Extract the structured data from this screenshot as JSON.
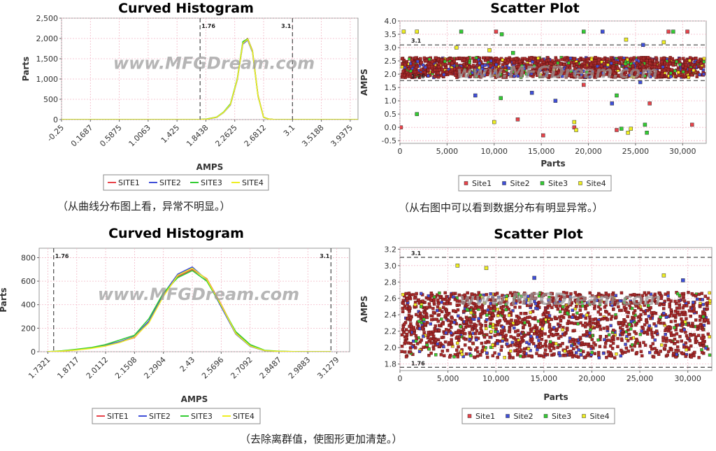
{
  "captions": {
    "top_left": "（从曲线分布图上看，异常不明显。）",
    "top_right": "（从右图中可以看到数据分布有明显异常。）",
    "bottom": "（去除离群值，使图形更加清楚。）"
  },
  "watermark": "www.MFGDream.com",
  "colors": {
    "site1": "#e8434a",
    "site2": "#3f4fd8",
    "site3": "#33cc33",
    "site4": "#eeee22",
    "scatter_body": "#a62a2a"
  },
  "chart_data": [
    {
      "id": "hist1",
      "type": "line",
      "title": "Curved Histogram",
      "xlabel": "AMPS",
      "ylabel": "Parts",
      "xlim": [
        -0.25,
        4.05
      ],
      "ylim": [
        0,
        2500
      ],
      "yticks": [
        0,
        500,
        1000,
        1500,
        2000,
        2500
      ],
      "yticklabels": [
        "0",
        "500",
        "1,000",
        "1,500",
        "2,000",
        "2,500"
      ],
      "xticks": [
        -0.25,
        0.1687,
        0.5875,
        1.0063,
        1.425,
        1.8438,
        2.2625,
        2.6812,
        3.1,
        3.5188,
        3.9375
      ],
      "xticklabels": [
        "-0.25",
        "0.1687",
        "0.5875",
        "1.0063",
        "1.425",
        "1.8438",
        "2.2625",
        "2.6812",
        "3.1",
        "3.5188",
        "3.9375"
      ],
      "limits": [
        {
          "value": 1.76,
          "label": "1.76"
        },
        {
          "value": 3.1,
          "label": "3.1"
        }
      ],
      "x": [
        -0.25,
        0.5,
        1.2,
        1.7,
        1.85,
        2.0,
        2.1,
        2.2,
        2.3,
        2.38,
        2.45,
        2.52,
        2.6,
        2.68,
        2.75,
        2.85,
        3.0,
        3.5,
        4.05
      ],
      "series": [
        {
          "name": "SITE1",
          "values": [
            0,
            0,
            0,
            0,
            10,
            60,
            180,
            380,
            1000,
            1900,
            2000,
            1700,
            600,
            60,
            15,
            0,
            0,
            0,
            0
          ]
        },
        {
          "name": "SITE2",
          "values": [
            0,
            0,
            0,
            0,
            8,
            55,
            170,
            360,
            980,
            1860,
            1960,
            1660,
            580,
            55,
            12,
            0,
            0,
            0,
            0
          ]
        },
        {
          "name": "SITE3",
          "values": [
            0,
            0,
            0,
            0,
            12,
            62,
            185,
            390,
            1010,
            1920,
            1990,
            1690,
            590,
            58,
            14,
            0,
            0,
            0,
            0
          ]
        },
        {
          "name": "SITE4",
          "values": [
            0,
            0,
            0,
            0,
            9,
            58,
            175,
            370,
            990,
            1880,
            1980,
            1680,
            585,
            57,
            13,
            0,
            0,
            0,
            0
          ]
        }
      ],
      "legend": "bottom"
    },
    {
      "id": "scatter1",
      "type": "scatter",
      "title": "Scatter Plot",
      "xlabel": "Parts",
      "ylabel": "AMPS",
      "xlim": [
        0,
        32500
      ],
      "ylim": [
        -0.6,
        4.0
      ],
      "yticks": [
        -0.5,
        0.0,
        0.5,
        1.0,
        1.5,
        2.0,
        2.5,
        3.0,
        3.5,
        4.0
      ],
      "yticklabels": [
        "-0.5",
        "0.0",
        "0.5",
        "1.0",
        "1.5",
        "2.0",
        "2.5",
        "3.0",
        "3.5",
        "4.0"
      ],
      "xticks": [
        0,
        5000,
        10000,
        15000,
        20000,
        25000,
        30000
      ],
      "xticklabels": [
        "0",
        "5,000",
        "10,000",
        "15,000",
        "20,000",
        "25,000",
        "30,000"
      ],
      "limits": [
        {
          "value": 3.1,
          "label": "3.1"
        },
        {
          "value": 1.76,
          "label": "1.76"
        }
      ],
      "band": {
        "low": 1.8,
        "high": 2.7
      },
      "series": [
        {
          "name": "Site1",
          "points": [
            [
              100,
              0.0
            ],
            [
              10200,
              3.6
            ],
            [
              12500,
              0.3
            ],
            [
              15200,
              -0.3
            ],
            [
              18500,
              0.0
            ],
            [
              19500,
              1.6
            ],
            [
              23000,
              -0.1
            ],
            [
              26500,
              0.9
            ],
            [
              28500,
              3.6
            ],
            [
              30500,
              3.6
            ],
            [
              31000,
              0.1
            ]
          ]
        },
        {
          "name": "Site2",
          "points": [
            [
              8000,
              1.2
            ],
            [
              14000,
              1.3
            ],
            [
              16500,
              1.0
            ],
            [
              21500,
              3.6
            ],
            [
              22500,
              0.9
            ],
            [
              25500,
              1.7
            ],
            [
              25800,
              3.1
            ]
          ]
        },
        {
          "name": "Site3",
          "points": [
            [
              1800,
              0.5
            ],
            [
              6500,
              3.6
            ],
            [
              10700,
              1.1
            ],
            [
              10800,
              3.5
            ],
            [
              12000,
              2.8
            ],
            [
              19500,
              3.6
            ],
            [
              23000,
              1.2
            ],
            [
              23500,
              -0.05
            ],
            [
              26000,
              0.1
            ],
            [
              26200,
              -0.2
            ],
            [
              29000,
              3.6
            ]
          ]
        },
        {
          "name": "Site4",
          "points": [
            [
              400,
              3.6
            ],
            [
              1800,
              3.6
            ],
            [
              6000,
              3.0
            ],
            [
              9500,
              2.9
            ],
            [
              10000,
              0.2
            ],
            [
              18500,
              0.2
            ],
            [
              18700,
              -0.1
            ],
            [
              24000,
              3.3
            ],
            [
              24200,
              -0.2
            ],
            [
              24500,
              -0.05
            ],
            [
              28000,
              3.2
            ]
          ]
        }
      ],
      "legend": "bottom"
    },
    {
      "id": "hist2",
      "type": "line",
      "title": "Curved Histogram",
      "xlabel": "AMPS",
      "ylabel": "Parts",
      "xlim": [
        1.69,
        3.19
      ],
      "ylim": [
        0,
        880
      ],
      "yticks": [
        0,
        200,
        400,
        600,
        800
      ],
      "yticklabels": [
        "0",
        "200",
        "400",
        "600",
        "800"
      ],
      "xticks": [
        1.7321,
        1.8717,
        2.0112,
        2.1508,
        2.2904,
        2.43,
        2.5696,
        2.7092,
        2.8487,
        2.9883,
        3.1279
      ],
      "xticklabels": [
        "1.7321",
        "1.8717",
        "2.0112",
        "2.1508",
        "2.2904",
        "2.43",
        "2.5696",
        "2.7092",
        "2.8487",
        "2.9883",
        "3.1279"
      ],
      "limits": [
        {
          "value": 1.76,
          "label": "1.76"
        },
        {
          "value": 3.1,
          "label": "3.1"
        }
      ],
      "x": [
        1.73,
        1.8,
        1.87,
        1.94,
        2.01,
        2.08,
        2.15,
        2.22,
        2.29,
        2.36,
        2.43,
        2.5,
        2.57,
        2.64,
        2.71,
        2.78,
        2.85,
        2.95,
        3.1
      ],
      "series": [
        {
          "name": "SITE1",
          "values": [
            0,
            5,
            15,
            30,
            50,
            80,
            120,
            250,
            480,
            640,
            700,
            620,
            400,
            160,
            50,
            10,
            3,
            0,
            0
          ]
        },
        {
          "name": "SITE2",
          "values": [
            0,
            6,
            18,
            32,
            55,
            85,
            130,
            260,
            490,
            660,
            720,
            610,
            380,
            150,
            45,
            8,
            2,
            0,
            0
          ]
        },
        {
          "name": "SITE3",
          "values": [
            0,
            8,
            20,
            35,
            60,
            100,
            140,
            280,
            500,
            630,
            690,
            600,
            390,
            170,
            60,
            12,
            4,
            0,
            0
          ]
        },
        {
          "name": "SITE4",
          "values": [
            0,
            5,
            14,
            28,
            48,
            78,
            125,
            245,
            470,
            650,
            710,
            615,
            395,
            155,
            48,
            9,
            3,
            0,
            0
          ]
        }
      ],
      "legend": "bottom"
    },
    {
      "id": "scatter2",
      "type": "scatter",
      "title": "Scatter Plot",
      "xlabel": "Parts",
      "ylabel": "AMPS",
      "xlim": [
        0,
        32500
      ],
      "ylim": [
        1.72,
        3.22
      ],
      "yticks": [
        1.8,
        2.0,
        2.2,
        2.4,
        2.6,
        2.8,
        3.0,
        3.2
      ],
      "yticklabels": [
        "1.8",
        "2.0",
        "2.2",
        "2.4",
        "2.6",
        "2.8",
        "3.0",
        "3.2"
      ],
      "xticks": [
        0,
        5000,
        10000,
        15000,
        20000,
        25000,
        30000
      ],
      "xticklabels": [
        "0",
        "5,000",
        "10,000",
        "15,000",
        "20,000",
        "25,000",
        "30,000"
      ],
      "limits": [
        {
          "value": 3.1,
          "label": "3.1"
        },
        {
          "value": 1.76,
          "label": "1.76"
        }
      ],
      "band": {
        "low": 1.8,
        "high": 2.75
      },
      "series": [
        {
          "name": "Site1",
          "points": []
        },
        {
          "name": "Site2",
          "points": [
            [
              14000,
              2.85
            ],
            [
              29500,
              2.82
            ]
          ]
        },
        {
          "name": "Site3",
          "points": []
        },
        {
          "name": "Site4",
          "points": [
            [
              6000,
              3.0
            ],
            [
              9000,
              2.97
            ],
            [
              27500,
              2.88
            ]
          ]
        }
      ],
      "legend": "bottom"
    }
  ]
}
